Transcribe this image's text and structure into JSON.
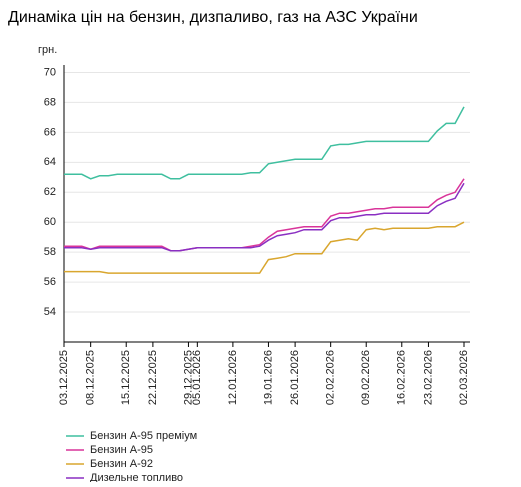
{
  "chart_data": {
    "type": "line",
    "title": "Динаміка цін на бензин, дизпаливо, газ на АЗС України",
    "y_label": "грн.",
    "categories": [
      "03.12.2025",
      null,
      null,
      "08.12.2025",
      null,
      null,
      null,
      "15.12.2025",
      null,
      null,
      "22.12.2025",
      null,
      null,
      null,
      "29.12.2025",
      "05.01.2026",
      null,
      null,
      null,
      "12.01.2026",
      null,
      null,
      null,
      "19.01.2026",
      null,
      null,
      "26.01.2026",
      null,
      null,
      null,
      "02.02.2026",
      null,
      null,
      null,
      "09.02.2026",
      null,
      null,
      null,
      "16.02.2026",
      null,
      null,
      "23.02.2026",
      null,
      null,
      null,
      "02.03.2026"
    ],
    "series": [
      {
        "name": "Бензин А-95 преміум",
        "color": "#3fbf9f",
        "values": [
          63.2,
          63.2,
          63.2,
          62.9,
          63.1,
          63.1,
          63.2,
          63.2,
          63.2,
          63.2,
          63.2,
          63.2,
          62.9,
          62.9,
          63.2,
          63.2,
          63.2,
          63.2,
          63.2,
          63.2,
          63.2,
          63.3,
          63.3,
          63.9,
          64.0,
          64.1,
          64.2,
          64.2,
          64.2,
          64.2,
          65.1,
          65.2,
          65.2,
          65.3,
          65.4,
          65.4,
          65.4,
          65.4,
          65.4,
          65.4,
          65.4,
          65.4,
          66.1,
          66.6,
          66.6,
          67.7
        ]
      },
      {
        "name": "Бензин А-95",
        "color": "#d9349a",
        "values": [
          58.4,
          58.4,
          58.4,
          58.2,
          58.4,
          58.4,
          58.4,
          58.4,
          58.4,
          58.4,
          58.4,
          58.4,
          58.1,
          58.1,
          58.2,
          58.3,
          58.3,
          58.3,
          58.3,
          58.3,
          58.3,
          58.4,
          58.5,
          59.0,
          59.4,
          59.5,
          59.6,
          59.7,
          59.7,
          59.7,
          60.4,
          60.6,
          60.6,
          60.7,
          60.8,
          60.9,
          60.9,
          61.0,
          61.0,
          61.0,
          61.0,
          61.0,
          61.5,
          61.8,
          62.0,
          62.9
        ]
      },
      {
        "name": "Бензин А-92",
        "color": "#d9a62e",
        "values": [
          56.7,
          56.7,
          56.7,
          56.7,
          56.7,
          56.6,
          56.6,
          56.6,
          56.6,
          56.6,
          56.6,
          56.6,
          56.6,
          56.6,
          56.6,
          56.6,
          56.6,
          56.6,
          56.6,
          56.6,
          56.6,
          56.6,
          56.6,
          57.5,
          57.6,
          57.7,
          57.9,
          57.9,
          57.9,
          57.9,
          58.7,
          58.8,
          58.9,
          58.8,
          59.5,
          59.6,
          59.5,
          59.6,
          59.6,
          59.6,
          59.6,
          59.6,
          59.7,
          59.7,
          59.7,
          60.0
        ]
      },
      {
        "name": "Дизельне топливо",
        "color": "#8a2fc2",
        "values": [
          58.3,
          58.3,
          58.3,
          58.2,
          58.3,
          58.3,
          58.3,
          58.3,
          58.3,
          58.3,
          58.3,
          58.3,
          58.1,
          58.1,
          58.2,
          58.3,
          58.3,
          58.3,
          58.3,
          58.3,
          58.3,
          58.3,
          58.4,
          58.8,
          59.1,
          59.2,
          59.3,
          59.5,
          59.5,
          59.5,
          60.1,
          60.3,
          60.3,
          60.4,
          60.5,
          60.5,
          60.6,
          60.6,
          60.6,
          60.6,
          60.6,
          60.6,
          61.1,
          61.4,
          61.6,
          62.6
        ]
      }
    ],
    "ylim": [
      52,
      70.5
    ],
    "yticks": [
      54,
      56,
      58,
      60,
      62,
      64,
      66,
      68,
      70
    ],
    "grid": true,
    "legend": "bottom-left"
  }
}
